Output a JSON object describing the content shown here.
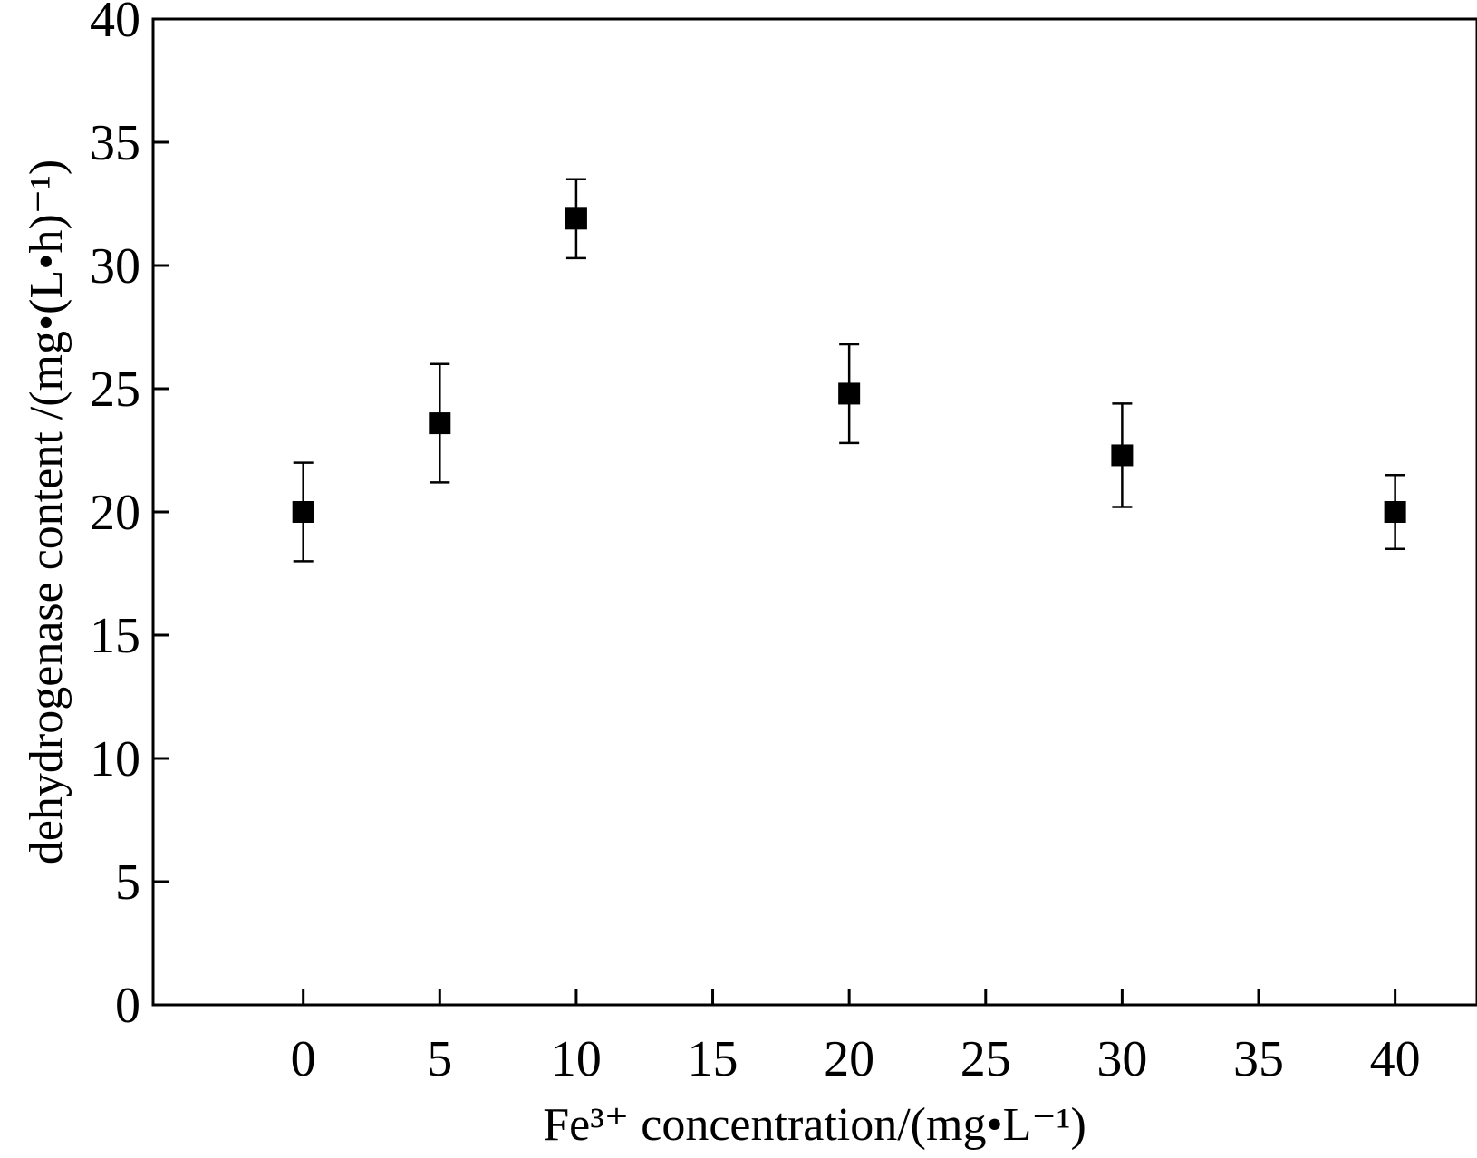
{
  "chart_data": {
    "type": "scatter",
    "title": "",
    "xlabel": "Fe³⁺ concentration/(mg•L⁻¹)",
    "ylabel": "dehydrogenase content /(mg•(L•h)⁻¹)",
    "xlim": [
      -5.5,
      43
    ],
    "ylim": [
      0,
      40
    ],
    "x_ticks": [
      0,
      5,
      10,
      15,
      20,
      25,
      30,
      35,
      40
    ],
    "y_ticks": [
      0,
      5,
      10,
      15,
      20,
      25,
      30,
      35,
      40
    ],
    "grid": false,
    "marker": "filled-square",
    "colors": {
      "marker": "#000000",
      "axis": "#000000",
      "background": "#ffffff"
    },
    "series": [
      {
        "x": [
          0,
          5,
          10,
          20,
          30,
          40
        ],
        "y": [
          20.0,
          23.6,
          31.9,
          24.8,
          22.3,
          20.0
        ],
        "error": [
          2.0,
          2.4,
          1.6,
          2.0,
          2.1,
          1.5
        ]
      }
    ]
  }
}
